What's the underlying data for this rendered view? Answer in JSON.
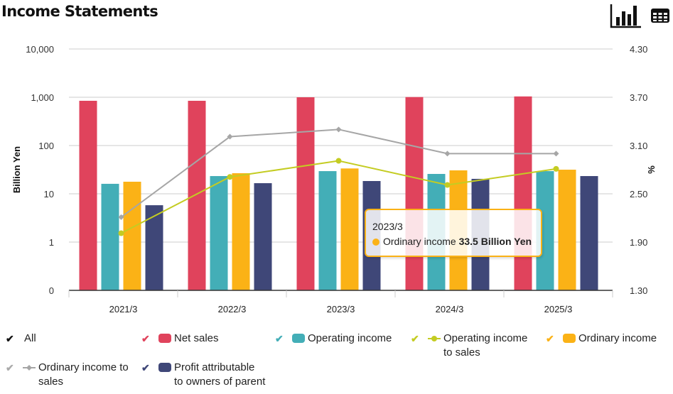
{
  "header": {
    "title": "Income Statements",
    "chart_view_icon": "bar-chart-icon",
    "table_view_icon": "table-grid-icon"
  },
  "tooltip": {
    "date": "2023/3",
    "series": "Ordinary income",
    "value": "33.5 Billion Yen",
    "color": "#fbb216"
  },
  "legend": [
    {
      "key": "all",
      "label_lines": [
        "All"
      ],
      "check_color": "#111111",
      "marker": "none"
    },
    {
      "key": "net_sales",
      "label_lines": [
        "Net sales"
      ],
      "check_color": "#e0435c",
      "marker": "bar",
      "color": "#e0435c"
    },
    {
      "key": "operating_income",
      "label_lines": [
        "Operating income"
      ],
      "check_color": "#43aeb7",
      "marker": "bar",
      "color": "#43aeb7"
    },
    {
      "key": "operating_income_to_sales",
      "label_lines": [
        "Operating income",
        "to sales"
      ],
      "check_color": "#c4cc22",
      "marker": "line-circle",
      "color": "#c4cc22"
    },
    {
      "key": "ordinary_income",
      "label_lines": [
        "Ordinary income"
      ],
      "check_color": "#fbb216",
      "marker": "bar",
      "color": "#fbb216"
    },
    {
      "key": "ordinary_income_to_sales",
      "label_lines": [
        "Ordinary income to",
        "sales"
      ],
      "check_color": "#aaaaaa",
      "marker": "line-diamond",
      "color": "#a6a6a6"
    },
    {
      "key": "profit_attributable",
      "label_lines": [
        "Profit attributable",
        "to owners of parent"
      ],
      "check_color": "#3f4778",
      "marker": "bar",
      "color": "#3f4778"
    }
  ],
  "chart_data": {
    "type": "bar",
    "title": "Income Statements",
    "xlabel": "",
    "categories": [
      "2021/3",
      "2022/3",
      "2023/3",
      "2024/3",
      "2025/3"
    ],
    "y_left": {
      "label": "Billion Yen",
      "scale": "log",
      "ticks": [
        0,
        1,
        10,
        100,
        1000,
        10000
      ],
      "tick_labels": [
        "0",
        "1",
        "10",
        "100",
        "1,000",
        "10,000"
      ],
      "range": [
        0,
        10000
      ]
    },
    "y_right": {
      "label": "%",
      "scale": "linear",
      "ticks": [
        1.3,
        1.9,
        2.5,
        3.1,
        3.7,
        4.3
      ],
      "tick_labels": [
        "1.30",
        "1.90",
        "2.50",
        "3.10",
        "3.70",
        "4.30"
      ],
      "range": [
        1.3,
        4.3
      ]
    },
    "grid": true,
    "legend_position": "bottom",
    "series": [
      {
        "name": "Net sales",
        "type": "bar",
        "axis": "left",
        "color": "#e0435c",
        "values": [
          845,
          845,
          1000,
          1010,
          1040
        ]
      },
      {
        "name": "Operating income",
        "type": "bar",
        "axis": "left",
        "color": "#43aeb7",
        "values": [
          16.1,
          23.3,
          29.5,
          25.8,
          29.5
        ]
      },
      {
        "name": "Ordinary income",
        "type": "bar",
        "axis": "left",
        "color": "#fbb216",
        "values": [
          17.8,
          26.7,
          33.5,
          30.6,
          31.6
        ]
      },
      {
        "name": "Profit attributable to owners of parent",
        "type": "bar",
        "axis": "left",
        "color": "#3f4778",
        "values": [
          5.8,
          16.6,
          18.4,
          20.4,
          23.3
        ]
      },
      {
        "name": "Ordinary income to sales",
        "type": "line",
        "axis": "right",
        "marker": "diamond",
        "color": "#a6a6a6",
        "values": [
          2.21,
          3.21,
          3.3,
          3.0,
          3.0
        ]
      },
      {
        "name": "Operating income to sales",
        "type": "line",
        "axis": "right",
        "marker": "circle",
        "color": "#c4cc22",
        "values": [
          2.01,
          2.71,
          2.91,
          2.61,
          2.81
        ]
      }
    ],
    "highlighted": {
      "category": "2023/3",
      "series": "Ordinary income"
    }
  }
}
